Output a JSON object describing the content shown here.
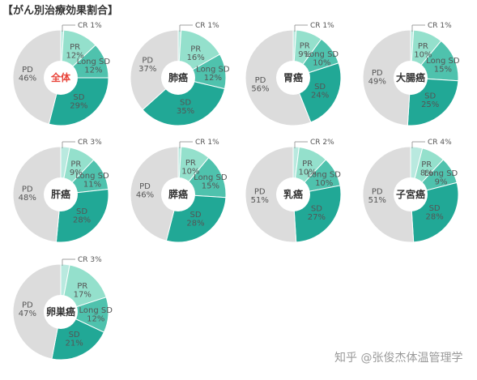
{
  "title": "【がん別治療効果割合】",
  "watermark": "知乎 @张俊杰体温管理学",
  "colors": {
    "CR": "#b9e9df",
    "PR": "#94e0cc",
    "LongSD": "#4fc2ad",
    "SD": "#21a896",
    "PD": "#dcdcdc",
    "leader": "#8a8a8a",
    "text": "#555555",
    "center_text": "#333333",
    "center_highlight": "#e8443a"
  },
  "chart_data": [
    {
      "type": "pie",
      "center_label": "全体",
      "highlight": true,
      "labels": {
        "CR": "CR 1%",
        "PR": "PR\n12%",
        "LongSD": "Long SD\n12%",
        "SD": "SD\n29%",
        "PD": "PD\n46%"
      },
      "values": {
        "CR": 1,
        "PR": 12,
        "LongSD": 12,
        "SD": 29,
        "PD": 46
      }
    },
    {
      "type": "pie",
      "center_label": "肺癌",
      "labels": {
        "CR": "CR 1%",
        "PR": "PR\n16%",
        "LongSD": "Long SD\n12%",
        "SD": "SD\n35%",
        "PD": "PD\n37%"
      },
      "values": {
        "CR": 1,
        "PR": 16,
        "LongSD": 12,
        "SD": 35,
        "PD": 37
      }
    },
    {
      "type": "pie",
      "center_label": "胃癌",
      "labels": {
        "CR": "CR 1%",
        "PR": "PR\n9%",
        "LongSD": "Long SD\n10%",
        "SD": "SD\n24%",
        "PD": "PD\n56%"
      },
      "values": {
        "CR": 1,
        "PR": 9,
        "LongSD": 10,
        "SD": 24,
        "PD": 56
      }
    },
    {
      "type": "pie",
      "center_label": "大腸癌",
      "labels": {
        "CR": "CR 1%",
        "PR": "PR\n10%",
        "LongSD": "Long SD\n15%",
        "SD": "SD\n25%",
        "PD": "PD\n49%"
      },
      "values": {
        "CR": 1,
        "PR": 10,
        "LongSD": 15,
        "SD": 25,
        "PD": 49
      }
    },
    {
      "type": "pie",
      "center_label": "肝癌",
      "labels": {
        "CR": "CR 3%",
        "PR": "PR\n9%",
        "LongSD": "Long SD\n11%",
        "SD": "SD\n28%",
        "PD": "PD\n48%"
      },
      "values": {
        "CR": 3,
        "PR": 9,
        "LongSD": 11,
        "SD": 28,
        "PD": 48
      }
    },
    {
      "type": "pie",
      "center_label": "膵癌",
      "labels": {
        "CR": "CR 1%",
        "PR": "PR\n10%",
        "LongSD": "Long SD\n15%",
        "SD": "SD\n28%",
        "PD": "PD\n46%"
      },
      "values": {
        "CR": 1,
        "PR": 10,
        "LongSD": 15,
        "SD": 28,
        "PD": 46
      }
    },
    {
      "type": "pie",
      "center_label": "乳癌",
      "labels": {
        "CR": "CR 2%",
        "PR": "PR\n10%",
        "LongSD": "Long SD\n10%",
        "SD": "SD\n27%",
        "PD": "PD\n51%"
      },
      "values": {
        "CR": 2,
        "PR": 10,
        "LongSD": 10,
        "SD": 27,
        "PD": 51
      }
    },
    {
      "type": "pie",
      "center_label": "子宮癌",
      "labels": {
        "CR": "CR 4%",
        "PR": "PR\n8%",
        "LongSD": "Long SD\n9%",
        "SD": "SD\n28%",
        "PD": "PD\n51%"
      },
      "values": {
        "CR": 4,
        "PR": 8,
        "LongSD": 9,
        "SD": 28,
        "PD": 51
      }
    },
    {
      "type": "pie",
      "center_label": "卵巣癌",
      "labels": {
        "CR": "CR 3%",
        "PR": "PR\n17%",
        "LongSD": "Long SD\n12%",
        "SD": "SD\n21%",
        "PD": "PD\n47%"
      },
      "values": {
        "CR": 3,
        "PR": 17,
        "LongSD": 12,
        "SD": 21,
        "PD": 47
      }
    }
  ]
}
